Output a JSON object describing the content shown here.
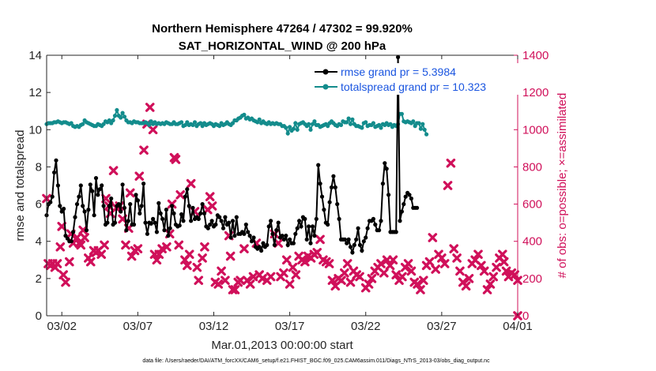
{
  "chart_data": {
    "type": "line",
    "title": "Northern Hemisphere 47264 / 47302 = 99.920%",
    "subtitle": "SAT_HORIZONTAL_WIND @ 200 hPa",
    "xlabel": "Mar.01,2013 00:00:00 start",
    "ylabel": "rmse and totalspread",
    "ylabel_right": "# of obs: o=possible; ×=assimilated",
    "xlim": [
      0,
      31
    ],
    "ylim": [
      0,
      14
    ],
    "ylim_right": [
      0,
      1400
    ],
    "x_ticks": [
      1,
      6,
      11,
      16,
      21,
      26,
      31
    ],
    "x_tick_labels": [
      "03/02",
      "03/07",
      "03/12",
      "03/17",
      "03/22",
      "03/27",
      "04/01"
    ],
    "y_ticks": [
      0,
      2,
      4,
      6,
      8,
      10,
      12,
      14
    ],
    "y_tick_labels": [
      "0",
      "2",
      "4",
      "6",
      "8",
      "10",
      "12",
      "14"
    ],
    "y_ticks_right": [
      0,
      200,
      400,
      600,
      800,
      1000,
      1200,
      1400
    ],
    "y_tick_labels_right": [
      "0",
      "200",
      "400",
      "600",
      "800",
      "1000",
      "1200",
      "1400"
    ],
    "legend_position": "top-right",
    "colors": {
      "rmse": "#000000",
      "totalspread": "#138c8c",
      "obs": "#d0105a",
      "legend_text": "#1a55e0"
    },
    "series": [
      {
        "name": "rmse grand pr = 5.3984",
        "axis": "left",
        "step": 0.125,
        "values": [
          5.4,
          6.0,
          6.1,
          6.4,
          7.7,
          8.35,
          7.0,
          5.9,
          5.6,
          5.75,
          4.3,
          4.15,
          4.0,
          4.0,
          4.5,
          5.3,
          6.0,
          6.4,
          7.0,
          5.9,
          5.6,
          4.6,
          5.7,
          7.05,
          6.7,
          5.4,
          7.4,
          6.5,
          6.8,
          7.0,
          5.9,
          4.9,
          5.0,
          5.9,
          6.3,
          4.9,
          5.0,
          5.9,
          6.0,
          5.6,
          7.05,
          5.8,
          4.6,
          5.1,
          6.0,
          4.9,
          4.9,
          6.5,
          6.2,
          5.5,
          5.9,
          7.1,
          5.0,
          4.4,
          5.0,
          4.95,
          5.2,
          5.0,
          4.5,
          6.05,
          5.5,
          5.2,
          4.6,
          5.7,
          4.3,
          4.7,
          5.9,
          5.5,
          4.9,
          4.8,
          4.85,
          5.45,
          5.1,
          6.4,
          6.8,
          5.9,
          5.1,
          5.8,
          5.2,
          5.3,
          5.2,
          5.5,
          6.0,
          5.5,
          4.8,
          4.7,
          4.9,
          5.1,
          4.8,
          4.9,
          5.4,
          5.3,
          5.1,
          4.7,
          5.3,
          4.9,
          5.0,
          4.2,
          5.1,
          4.3,
          5.3,
          4.4,
          4.4,
          4.5,
          4.4,
          4.9,
          4.5,
          4.3,
          4.0,
          4.2,
          3.7,
          3.6,
          3.7,
          3.5,
          3.9,
          3.7,
          3.8,
          4.8,
          5.1,
          4.4,
          3.8,
          4.6,
          5.0,
          4.2,
          4.3,
          4.1,
          4.3,
          3.8,
          4.1,
          3.9,
          3.9,
          4.4,
          4.7,
          5.1,
          4.8,
          5.3,
          5.2,
          4.1,
          4.8,
          3.9,
          4.8,
          4.3,
          5.2,
          8.1,
          7.1,
          6.4,
          5.7,
          5.0,
          4.9,
          6.1,
          6.9,
          7.5,
          6.9,
          6.0,
          5.2,
          4.1,
          4.1,
          4.1,
          3.9,
          4.1,
          3.7,
          3.4,
          3.8,
          4.1,
          4.7,
          3.8,
          3.5,
          4.0,
          4.2,
          4.7,
          5.1,
          5.1,
          5.2,
          4.9,
          4.6,
          4.6,
          5.1,
          7.1,
          8.2,
          7.9,
          6.5,
          4.5,
          4.5,
          4.5,
          4.5,
          13.9,
          5.1,
          5.6,
          6.0,
          6.4,
          6.6,
          6.5,
          6.3,
          5.8,
          5.8,
          5.8
        ]
      },
      {
        "name": "totalspread grand pr = 10.323",
        "axis": "left",
        "step": 0.125,
        "values": [
          10.3,
          10.35,
          10.35,
          10.35,
          10.4,
          10.4,
          10.45,
          10.4,
          10.35,
          10.4,
          10.4,
          10.35,
          10.3,
          10.35,
          10.2,
          10.15,
          10.2,
          10.15,
          10.25,
          10.3,
          10.5,
          10.4,
          10.35,
          10.3,
          10.25,
          10.2,
          10.2,
          10.3,
          10.25,
          10.2,
          10.3,
          10.45,
          10.4,
          10.5,
          10.35,
          10.5,
          10.75,
          11.05,
          10.75,
          10.65,
          10.9,
          10.7,
          10.5,
          10.4,
          10.4,
          10.35,
          10.45,
          10.4,
          10.4,
          10.35,
          10.35,
          10.35,
          10.4,
          10.35,
          10.25,
          10.45,
          10.3,
          10.4,
          10.3,
          10.35,
          10.3,
          10.35,
          10.3,
          10.4,
          10.35,
          10.3,
          10.3,
          10.4,
          10.3,
          10.3,
          10.35,
          10.4,
          10.2,
          10.25,
          10.4,
          10.25,
          10.3,
          10.25,
          10.4,
          10.2,
          10.3,
          10.35,
          10.2,
          10.35,
          10.25,
          10.3,
          10.35,
          10.3,
          10.2,
          10.3,
          10.25,
          10.2,
          10.35,
          10.25,
          10.3,
          10.4,
          10.3,
          10.25,
          10.35,
          10.5,
          10.5,
          10.6,
          10.65,
          10.75,
          10.8,
          10.6,
          10.65,
          10.55,
          10.6,
          10.5,
          10.45,
          10.4,
          10.55,
          10.35,
          10.45,
          10.35,
          10.3,
          10.4,
          10.3,
          10.35,
          10.3,
          10.35,
          10.3,
          10.3,
          10.2,
          10.2,
          10.1,
          9.8,
          10.15,
          9.95,
          10.05,
          10.35,
          10.0,
          10.3,
          10.35,
          10.4,
          10.3,
          10.2,
          10.3,
          10.0,
          10.3,
          10.45,
          10.25,
          10.25,
          10.15,
          10.2,
          10.25,
          10.3,
          10.2,
          10.35,
          10.45,
          10.35,
          10.25,
          10.2,
          10.3,
          10.25,
          10.45,
          10.4,
          10.4,
          10.6,
          10.3,
          10.55,
          10.3,
          10.2,
          10.2,
          10.15,
          10.1,
          10.35,
          10.4,
          10.2,
          10.25,
          10.25,
          10.35,
          10.15,
          10.2,
          10.25,
          10.1,
          10.3,
          10.25,
          10.35,
          10.25,
          10.3,
          10.15,
          10.25,
          10.2,
          10.3,
          10.85,
          10.85,
          10.45,
          10.4,
          10.45,
          10.4,
          10.35,
          10.45,
          10.2,
          10.35,
          10.35,
          10.05,
          10.3,
          10.0,
          9.75
        ]
      },
      {
        "name": "assimilated obs",
        "axis": "right",
        "marker": "x",
        "points": [
          [
            0,
            630
          ],
          [
            0.1,
            280
          ],
          [
            0.25,
            270
          ],
          [
            0.4,
            280
          ],
          [
            0.55,
            260
          ],
          [
            0.7,
            280
          ],
          [
            0.9,
            370
          ],
          [
            1.0,
            480
          ],
          [
            1.1,
            220
          ],
          [
            1.25,
            180
          ],
          [
            1.5,
            290
          ],
          [
            1.6,
            440
          ],
          [
            1.75,
            390
          ],
          [
            2.0,
            420
          ],
          [
            2.15,
            390
          ],
          [
            2.25,
            380
          ],
          [
            2.4,
            460
          ],
          [
            2.5,
            420
          ],
          [
            2.75,
            310
          ],
          [
            2.9,
            290
          ],
          [
            3.1,
            350
          ],
          [
            3.25,
            340
          ],
          [
            3.4,
            350
          ],
          [
            3.6,
            330
          ],
          [
            3.8,
            380
          ],
          [
            3.9,
            630
          ],
          [
            4.1,
            590
          ],
          [
            4.2,
            550
          ],
          [
            4.4,
            780
          ],
          [
            4.6,
            580
          ],
          [
            4.8,
            590
          ],
          [
            5.0,
            520
          ],
          [
            5.2,
            380
          ],
          [
            5.4,
            470
          ],
          [
            5.5,
            660
          ],
          [
            5.6,
            320
          ],
          [
            5.8,
            350
          ],
          [
            6.0,
            360
          ],
          [
            6.1,
            750
          ],
          [
            6.4,
            890
          ],
          [
            6.6,
            1030
          ],
          [
            6.8,
            1120
          ],
          [
            7.0,
            1000
          ],
          [
            7.1,
            330
          ],
          [
            7.25,
            300
          ],
          [
            7.4,
            330
          ],
          [
            7.6,
            360
          ],
          [
            7.9,
            370
          ],
          [
            8.1,
            440
          ],
          [
            8.25,
            600
          ],
          [
            8.4,
            850
          ],
          [
            8.5,
            840
          ],
          [
            8.7,
            380
          ],
          [
            8.8,
            650
          ],
          [
            9.1,
            300
          ],
          [
            9.25,
            270
          ],
          [
            9.4,
            330
          ],
          [
            9.5,
            710
          ],
          [
            9.75,
            560
          ],
          [
            9.9,
            260
          ],
          [
            10.0,
            190
          ],
          [
            10.25,
            310
          ],
          [
            10.4,
            370
          ],
          [
            10.6,
            570
          ],
          [
            10.75,
            640
          ],
          [
            10.9,
            590
          ],
          [
            11.1,
            180
          ],
          [
            11.3,
            170
          ],
          [
            11.5,
            240
          ],
          [
            11.75,
            190
          ],
          [
            12.0,
            430
          ],
          [
            12.1,
            320
          ],
          [
            12.25,
            140
          ],
          [
            12.4,
            140
          ],
          [
            12.6,
            180
          ],
          [
            12.75,
            190
          ],
          [
            13.0,
            360
          ],
          [
            13.2,
            190
          ],
          [
            13.4,
            170
          ],
          [
            13.6,
            210
          ],
          [
            13.8,
            390
          ],
          [
            14.0,
            220
          ],
          [
            14.2,
            200
          ],
          [
            14.5,
            190
          ],
          [
            14.75,
            210
          ],
          [
            15.0,
            440
          ],
          [
            15.25,
            390
          ],
          [
            15.4,
            210
          ],
          [
            15.6,
            230
          ],
          [
            15.8,
            300
          ],
          [
            16.0,
            170
          ],
          [
            16.2,
            260
          ],
          [
            16.4,
            220
          ],
          [
            16.6,
            320
          ],
          [
            16.8,
            300
          ],
          [
            17.0,
            290
          ],
          [
            17.2,
            320
          ],
          [
            17.4,
            310
          ],
          [
            17.6,
            330
          ],
          [
            17.8,
            340
          ],
          [
            18.0,
            410
          ],
          [
            18.2,
            300
          ],
          [
            18.4,
            290
          ],
          [
            18.6,
            280
          ],
          [
            18.8,
            190
          ],
          [
            19.0,
            160
          ],
          [
            19.2,
            200
          ],
          [
            19.4,
            190
          ],
          [
            19.6,
            230
          ],
          [
            19.8,
            280
          ],
          [
            20.0,
            180
          ],
          [
            20.2,
            240
          ],
          [
            20.4,
            220
          ],
          [
            20.6,
            210
          ],
          [
            21.0,
            150
          ],
          [
            21.2,
            170
          ],
          [
            21.4,
            200
          ],
          [
            21.6,
            240
          ],
          [
            21.8,
            260
          ],
          [
            22.0,
            280
          ],
          [
            22.2,
            230
          ],
          [
            22.4,
            300
          ],
          [
            22.6,
            270
          ],
          [
            22.8,
            300
          ],
          [
            23.0,
            220
          ],
          [
            23.2,
            190
          ],
          [
            23.4,
            210
          ],
          [
            23.6,
            260
          ],
          [
            23.8,
            280
          ],
          [
            24.0,
            240
          ],
          [
            24.2,
            180
          ],
          [
            24.4,
            170
          ],
          [
            24.6,
            140
          ],
          [
            24.8,
            190
          ],
          [
            25.0,
            270
          ],
          [
            25.2,
            290
          ],
          [
            25.4,
            420
          ],
          [
            25.6,
            250
          ],
          [
            25.8,
            330
          ],
          [
            26.0,
            310
          ],
          [
            26.2,
            280
          ],
          [
            26.4,
            700
          ],
          [
            26.6,
            820
          ],
          [
            26.8,
            360
          ],
          [
            27.0,
            310
          ],
          [
            27.2,
            240
          ],
          [
            27.4,
            180
          ],
          [
            27.6,
            160
          ],
          [
            27.8,
            200
          ],
          [
            28.0,
            280
          ],
          [
            28.2,
            300
          ],
          [
            28.4,
            330
          ],
          [
            28.6,
            270
          ],
          [
            28.8,
            240
          ],
          [
            29.0,
            140
          ],
          [
            29.2,
            170
          ],
          [
            29.4,
            210
          ],
          [
            29.6,
            260
          ],
          [
            29.8,
            310
          ],
          [
            30.0,
            330
          ],
          [
            30.1,
            290
          ],
          [
            30.25,
            240
          ],
          [
            30.4,
            210
          ],
          [
            30.6,
            230
          ],
          [
            30.8,
            220
          ],
          [
            31.0,
            190
          ],
          [
            31.0,
            0
          ]
        ]
      }
    ]
  },
  "footnote": "data file: /Users/raeder/DAI/ATM_forcXX/CAM6_setup/f.e21.FHIST_BGC.f09_025.CAM6assim.011/Diags_NTrS_2013-03/obs_diag_output.nc"
}
